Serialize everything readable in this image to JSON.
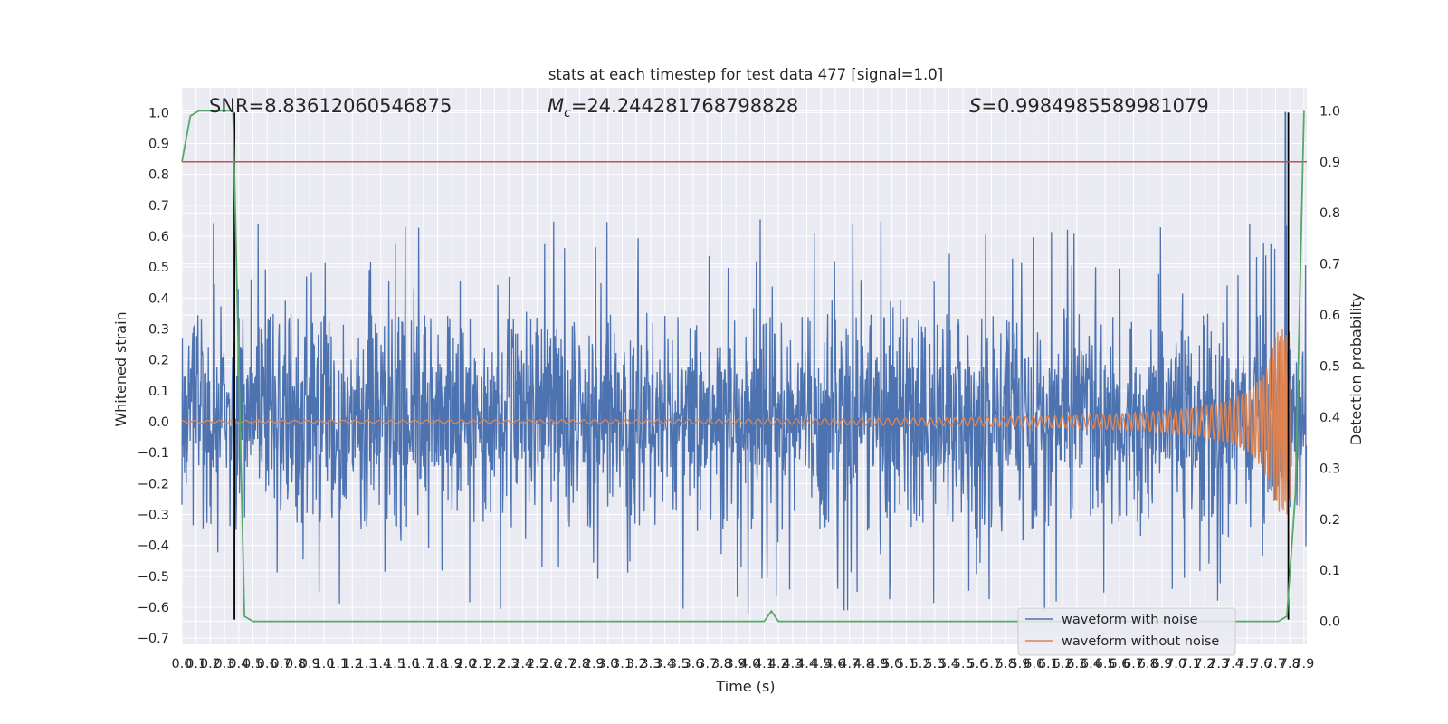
{
  "chart_data": {
    "type": "line",
    "title": "stats at each timestep for test data 477 [signal=1.0]",
    "xlabel": "Time (s)",
    "ylabel": "Whitened strain",
    "y2label": "Detection probability",
    "xlim": [
      0,
      7.92
    ],
    "ylim": [
      -0.72,
      1.08
    ],
    "y2lim": [
      -0.045,
      1.045
    ],
    "grid": true,
    "legend_position": "lower-right",
    "x_ticks": [
      "0.0",
      "0.1",
      "0.2",
      "0.3",
      "0.4",
      "0.5",
      "0.6",
      "0.7",
      "0.8",
      "0.9",
      "1.0",
      "1.1",
      "1.2",
      "1.3",
      "1.4",
      "1.5",
      "1.6",
      "1.7",
      "1.8",
      "1.9",
      "2.0",
      "2.1",
      "2.2",
      "2.3",
      "2.4",
      "2.5",
      "2.6",
      "2.7",
      "2.8",
      "2.9",
      "3.0",
      "3.1",
      "3.2",
      "3.3",
      "3.4",
      "3.5",
      "3.6",
      "3.7",
      "3.8",
      "3.9",
      "4.0",
      "4.1",
      "4.2",
      "4.3",
      "4.4",
      "4.5",
      "4.6",
      "4.7",
      "4.8",
      "4.9",
      "5.0",
      "5.1",
      "5.2",
      "5.3",
      "5.4",
      "5.5",
      "5.6",
      "5.7",
      "5.8",
      "5.9",
      "6.0",
      "6.1",
      "6.2",
      "6.3",
      "6.4",
      "6.5",
      "6.6",
      "6.7",
      "6.8",
      "6.9",
      "7.0",
      "7.1",
      "7.2",
      "7.3",
      "7.4",
      "7.5",
      "7.6",
      "7.7",
      "7.8",
      "7.9"
    ],
    "y_ticks": [
      "−0.7",
      "−0.6",
      "−0.5",
      "−0.4",
      "−0.3",
      "−0.2",
      "−0.1",
      "0.0",
      "0.1",
      "0.2",
      "0.3",
      "0.4",
      "0.5",
      "0.6",
      "0.7",
      "0.8",
      "0.9",
      "1.0"
    ],
    "y2_ticks": [
      "0.0",
      "0.1",
      "0.2",
      "0.3",
      "0.4",
      "0.5",
      "0.6",
      "0.7",
      "0.8",
      "0.9",
      "1.0"
    ],
    "annotations": {
      "snr": "SNR=8.83612060546875",
      "mc_symbol": "M",
      "mc_sub": "c",
      "mc_value": "=24.244281768798828",
      "s_symbol": "S",
      "s_value": "=0.9984985589981079"
    },
    "threshold_line": {
      "axis": "right",
      "value": 0.9
    },
    "vertical_markers": [
      {
        "x": 0.37,
        "y_from": -0.64,
        "y_to": 1.0
      },
      {
        "x": 7.79,
        "y_from": -0.64,
        "y_to": 1.0
      }
    ],
    "series": [
      {
        "name": "waveform with noise",
        "axis": "left",
        "kind": "dense-noise",
        "typical_band": [
          -0.15,
          0.18
        ],
        "peak_range": [
          -0.62,
          0.66
        ],
        "spike_near_end": {
          "x": 7.77,
          "value": 1.0
        }
      },
      {
        "name": "waveform without noise",
        "axis": "left",
        "kind": "chirp",
        "start_amplitude": 0.004,
        "peak_amplitude": 0.3,
        "end_x": 7.8
      },
      {
        "axis": "right",
        "kind": "detection-probability",
        "x": [
          0.0,
          0.06,
          0.12,
          0.18,
          0.24,
          0.3,
          0.36,
          0.4,
          0.44,
          0.5,
          1.0,
          2.0,
          3.0,
          4.0,
          4.1,
          4.15,
          4.2,
          4.3,
          5.0,
          6.0,
          7.0,
          7.72,
          7.78,
          7.84,
          7.9
        ],
        "values": [
          0.9,
          0.99,
          1.0,
          1.0,
          1.0,
          1.0,
          1.0,
          0.5,
          0.01,
          0.0,
          0.0,
          0.0,
          0.0,
          0.0,
          0.0,
          0.02,
          0.0,
          0.0,
          0.0,
          0.0,
          0.0,
          0.0,
          0.01,
          0.25,
          1.0
        ]
      }
    ],
    "colors": {
      "background": "#eaeaf2",
      "grid": "#ffffff",
      "noisy": "#4c72b0",
      "clean": "#dd8452",
      "probability": "#55a868",
      "threshold": "#c44e52",
      "marker": "#000000"
    }
  }
}
